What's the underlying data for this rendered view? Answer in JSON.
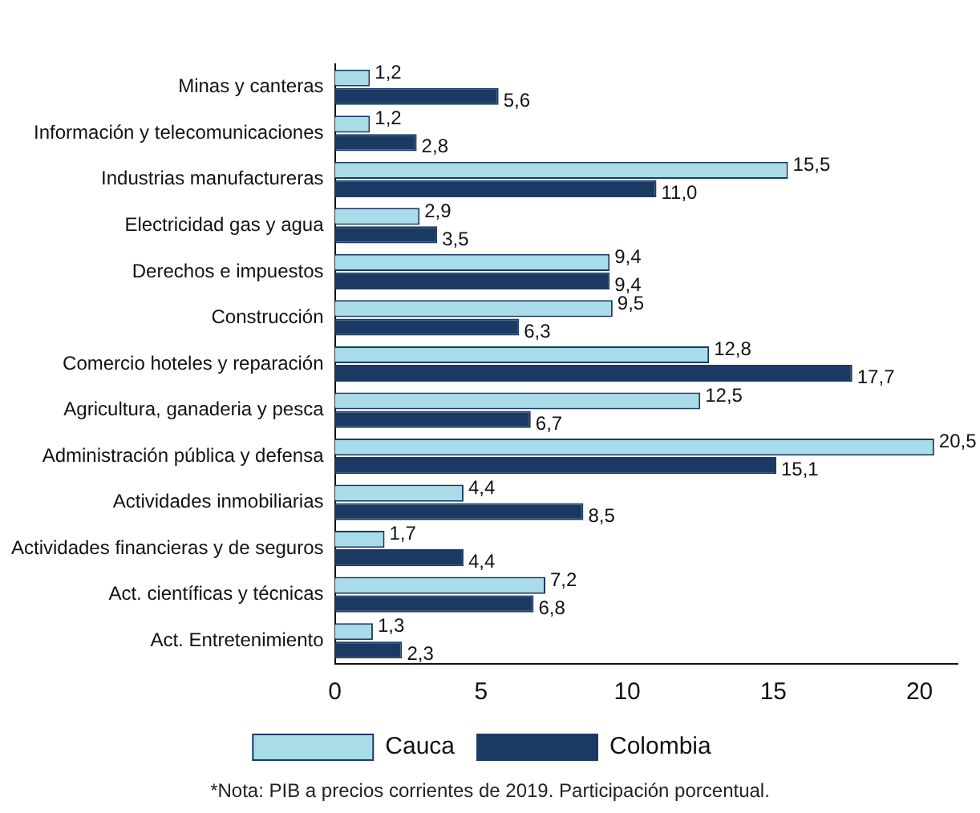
{
  "chart_data": {
    "type": "bar",
    "orientation": "horizontal",
    "categories": [
      "Minas y canteras",
      "Información y telecomunicaciones",
      "Industrias manufactureras",
      "Electricidad gas y agua",
      "Derechos e impuestos",
      "Construcción",
      "Comercio hoteles y reparación",
      "Agricultura, ganaderia y pesca",
      "Administración pública y defensa",
      "Actividades inmobiliarias",
      "Actividades financieras y de seguros",
      "Act. científicas y técnicas",
      "Act. Entretenimiento"
    ],
    "series": [
      {
        "name": "Cauca",
        "color": "#a8dce8",
        "values": [
          1.2,
          1.2,
          15.5,
          2.9,
          9.4,
          9.5,
          12.8,
          12.5,
          20.5,
          4.4,
          1.7,
          7.2,
          1.3
        ],
        "value_labels": [
          "1,2",
          "1,2",
          "15,5",
          "2,9",
          "9,4",
          "9,5",
          "12,8",
          "12,5",
          "20,5",
          "4,4",
          "1,7",
          "7,2",
          "1,3"
        ]
      },
      {
        "name": "Colombia",
        "color": "#1a3a63",
        "values": [
          5.6,
          2.8,
          11.0,
          3.5,
          9.4,
          6.3,
          17.7,
          6.7,
          15.1,
          8.5,
          4.4,
          6.8,
          2.3
        ],
        "value_labels": [
          "5,6",
          "2,8",
          "11,0",
          "3,5",
          "9,4",
          "6,3",
          "17,7",
          "6,7",
          "15,1",
          "8,5",
          "4,4",
          "6,8",
          "2,3"
        ]
      }
    ],
    "xlim": [
      0,
      21.3
    ],
    "xticks": [
      0,
      5,
      10,
      15,
      20
    ],
    "grid": false,
    "legend": "bottom",
    "annotations": [
      "*Nota: PIB a precios corrientes de 2019. Participación porcentual."
    ]
  }
}
